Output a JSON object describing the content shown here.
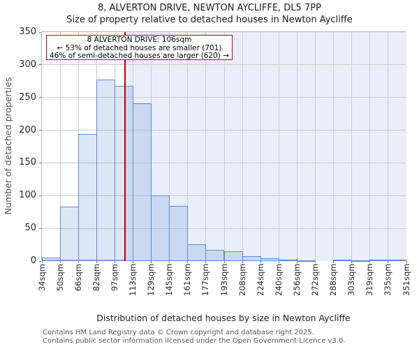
{
  "figure": {
    "title": "8, ALVERTON DRIVE, NEWTON AYCLIFFE, DL5 7PP",
    "subtitle": "Size of property relative to detached houses in Newton Aycliffe"
  },
  "annotation": {
    "line1": "8 ALVERTON DRIVE: 106sqm",
    "line2": "← 53% of detached houses are smaller (701)",
    "line3": "46% of semi-detached houses are larger (620) →"
  },
  "chart_data": {
    "type": "bar",
    "title": "8, ALVERTON DRIVE, NEWTON AYCLIFFE, DL5 7PP",
    "subtitle": "Size of property relative to detached houses in Newton Aycliffe",
    "xlabel": "Distribution of detached houses by size in Newton Aycliffe",
    "ylabel": "Number of detached properties",
    "ylim": [
      0,
      350
    ],
    "y_ticks": [
      0,
      50,
      100,
      150,
      200,
      250,
      300,
      350
    ],
    "bin_edges_sqm": [
      34,
      50,
      66,
      82,
      97,
      113,
      129,
      145,
      161,
      177,
      193,
      208,
      224,
      240,
      256,
      272,
      288,
      303,
      319,
      335,
      351
    ],
    "x_tick_labels": [
      "34sqm",
      "50sqm",
      "66sqm",
      "82sqm",
      "97sqm",
      "113sqm",
      "129sqm",
      "145sqm",
      "161sqm",
      "177sqm",
      "193sqm",
      "208sqm",
      "224sqm",
      "240sqm",
      "256sqm",
      "272sqm",
      "288sqm",
      "303sqm",
      "319sqm",
      "335sqm",
      "351sqm"
    ],
    "values": [
      5,
      83,
      194,
      277,
      268,
      241,
      100,
      84,
      26,
      17,
      15,
      7,
      4,
      2,
      1,
      0,
      2,
      1,
      2,
      2
    ],
    "marker_sqm": 106,
    "grid": true,
    "legend_position": "none",
    "colors": {
      "bar_fill": "rgba(91,140,208,0.21)",
      "bar_border": "#5c8bd0",
      "marker_line": "#bb0000",
      "annotation_border": "#cc0000",
      "shade_right_of_marker": "#e9eefa",
      "gridline": "#cccccc",
      "plot_border": "#b3b3b3"
    }
  },
  "footer": {
    "line1": "Contains HM Land Registry data © Crown copyright and database right 2025.",
    "line2": "Contains public sector information licensed under the Open Government Licence v3.0."
  }
}
